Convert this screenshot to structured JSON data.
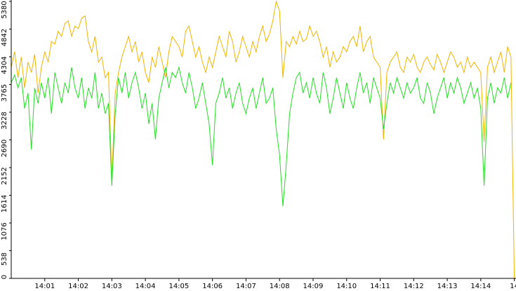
{
  "chart_data": {
    "type": "line",
    "x": [
      0,
      0.1,
      0.2,
      0.3,
      0.4,
      0.5,
      0.6,
      0.7,
      0.8,
      0.9,
      1,
      1.1,
      1.2,
      1.3,
      1.4,
      1.5,
      1.6,
      1.7,
      1.8,
      1.9,
      2,
      2.1,
      2.2,
      2.3,
      2.4,
      2.5,
      2.6,
      2.7,
      2.8,
      2.9,
      3,
      3.1,
      3.2,
      3.3,
      3.4,
      3.5,
      3.6,
      3.7,
      3.8,
      3.9,
      4,
      4.1,
      4.2,
      4.3,
      4.4,
      4.5,
      4.6,
      4.7,
      4.8,
      4.9,
      5,
      5.1,
      5.2,
      5.3,
      5.4,
      5.5,
      5.6,
      5.7,
      5.8,
      5.9,
      6,
      6.1,
      6.2,
      6.3,
      6.4,
      6.5,
      6.6,
      6.7,
      6.8,
      6.9,
      7,
      7.1,
      7.2,
      7.3,
      7.4,
      7.5,
      7.6,
      7.7,
      7.8,
      7.9,
      8,
      8.1,
      8.2,
      8.3,
      8.4,
      8.5,
      8.6,
      8.7,
      8.8,
      8.9,
      9,
      9.1,
      9.2,
      9.3,
      9.4,
      9.5,
      9.6,
      9.7,
      9.8,
      9.9,
      10,
      10.1,
      10.2,
      10.3,
      10.4,
      10.5,
      10.6,
      10.7,
      10.8,
      10.9,
      11,
      11.1,
      11.2,
      11.3,
      11.4,
      11.5,
      11.6,
      11.7,
      11.8,
      11.9,
      12,
      12.1,
      12.2,
      12.3,
      12.4,
      12.5,
      12.6,
      12.7,
      12.8,
      12.9,
      13,
      13.1,
      13.2,
      13.3,
      13.4,
      13.5,
      13.6,
      13.7,
      13.8,
      13.9,
      14,
      14.1,
      14.2,
      14.3,
      14.4,
      14.5,
      14.6,
      14.7,
      14.8,
      14.9,
      15
    ],
    "series": [
      {
        "color": "#f0b400",
        "values": [
          4100,
          4400,
          3900,
          4300,
          3700,
          4200,
          4000,
          4350,
          3600,
          4100,
          4400,
          4200,
          4600,
          4550,
          4800,
          4700,
          4950,
          5000,
          4700,
          4900,
          4850,
          5050,
          5100,
          4600,
          4400,
          4700,
          4200,
          4300,
          3900,
          4000,
          1900,
          3600,
          4000,
          4300,
          4500,
          4700,
          4400,
          4600,
          4200,
          4400,
          4000,
          3800,
          4300,
          4100,
          4500,
          4200,
          3900,
          4400,
          4700,
          4600,
          4500,
          4300,
          4800,
          4900,
          4600,
          4300,
          4500,
          4200,
          4000,
          4300,
          4100,
          4400,
          4700,
          4500,
          4300,
          4800,
          4600,
          4200,
          4400,
          4700,
          4500,
          4300,
          4600,
          4400,
          4700,
          4900,
          4600,
          4750,
          5000,
          5380,
          5200,
          3900,
          4600,
          4500,
          4700,
          4550,
          4800,
          4600,
          4650,
          4900,
          4700,
          4800,
          4600,
          4300,
          4500,
          4100,
          4400,
          4200,
          4300,
          4500,
          4400,
          4600,
          4700,
          4500,
          4900,
          4400,
          4600,
          4700,
          4300,
          4200,
          4100,
          2700,
          4000,
          4200,
          4300,
          4400,
          4100,
          4000,
          4300,
          4200,
          4350,
          4100,
          4000,
          4200,
          4300,
          4150,
          4050,
          4350,
          4200,
          4000,
          4200,
          4400,
          4300,
          4100,
          4200,
          4000,
          4300,
          4100,
          4200,
          4100,
          4000,
          2650,
          4100,
          4300,
          4000,
          4200,
          4400,
          4000,
          4500,
          4300,
          0
        ]
      },
      {
        "color": "#22dd22",
        "values": [
          3800,
          3950,
          3700,
          3900,
          3300,
          3600,
          2500,
          3700,
          3400,
          3800,
          3500,
          3900,
          3200,
          4000,
          3700,
          3400,
          3800,
          3600,
          4100,
          3700,
          3500,
          3900,
          3300,
          3700,
          3500,
          4000,
          3300,
          3600,
          3200,
          3400,
          1800,
          3200,
          3900,
          3600,
          4000,
          3500,
          3800,
          4000,
          3700,
          3300,
          3600,
          3000,
          3400,
          2700,
          3500,
          3800,
          4100,
          3700,
          4000,
          3900,
          4100,
          3800,
          3600,
          4000,
          3700,
          3300,
          3500,
          3800,
          3400,
          3000,
          2200,
          3400,
          3600,
          3900,
          3500,
          3700,
          3300,
          3600,
          3800,
          3400,
          3200,
          3500,
          3700,
          3300,
          3600,
          3900,
          3400,
          3500,
          3700,
          2900,
          2400,
          1400,
          2200,
          3200,
          3600,
          3900,
          4000,
          3600,
          3800,
          3500,
          3900,
          3600,
          3400,
          4000,
          3700,
          3200,
          3500,
          3900,
          3600,
          3300,
          3800,
          3500,
          3300,
          3700,
          4000,
          3600,
          3800,
          3400,
          3900,
          3700,
          3500,
          2900,
          3400,
          3800,
          3600,
          3900,
          3700,
          3500,
          3800,
          3600,
          3700,
          3900,
          3500,
          3400,
          3800,
          3600,
          3200,
          3500,
          3700,
          3900,
          3500,
          3800,
          3600,
          3900,
          3700,
          3400,
          3600,
          3800,
          3500,
          3700,
          3300,
          1800,
          3500,
          3800,
          3400,
          3700,
          3600,
          3900,
          3500,
          3800,
          null
        ]
      }
    ],
    "xlim": [
      0,
      15.05
    ],
    "xticks": [
      {
        "value": 1,
        "label": "14:01"
      },
      {
        "value": 2,
        "label": "14:02"
      },
      {
        "value": 3,
        "label": "14:03"
      },
      {
        "value": 4,
        "label": "14:04"
      },
      {
        "value": 5,
        "label": "14:05"
      },
      {
        "value": 6,
        "label": "14:06"
      },
      {
        "value": 7,
        "label": "14:07"
      },
      {
        "value": 8,
        "label": "14:08"
      },
      {
        "value": 9,
        "label": "14:09"
      },
      {
        "value": 10,
        "label": "14:10"
      },
      {
        "value": 11,
        "label": "14:11"
      },
      {
        "value": 12,
        "label": "14:12"
      },
      {
        "value": 13,
        "label": "14:13"
      },
      {
        "value": 14,
        "label": "14:14"
      },
      {
        "value": 15,
        "label": "14"
      }
    ],
    "ylim": [
      0,
      5380
    ],
    "yticks": [
      0,
      538,
      1076,
      1614,
      2152,
      2690,
      3228,
      3765,
      4304,
      4842,
      5380
    ],
    "grid": false
  }
}
